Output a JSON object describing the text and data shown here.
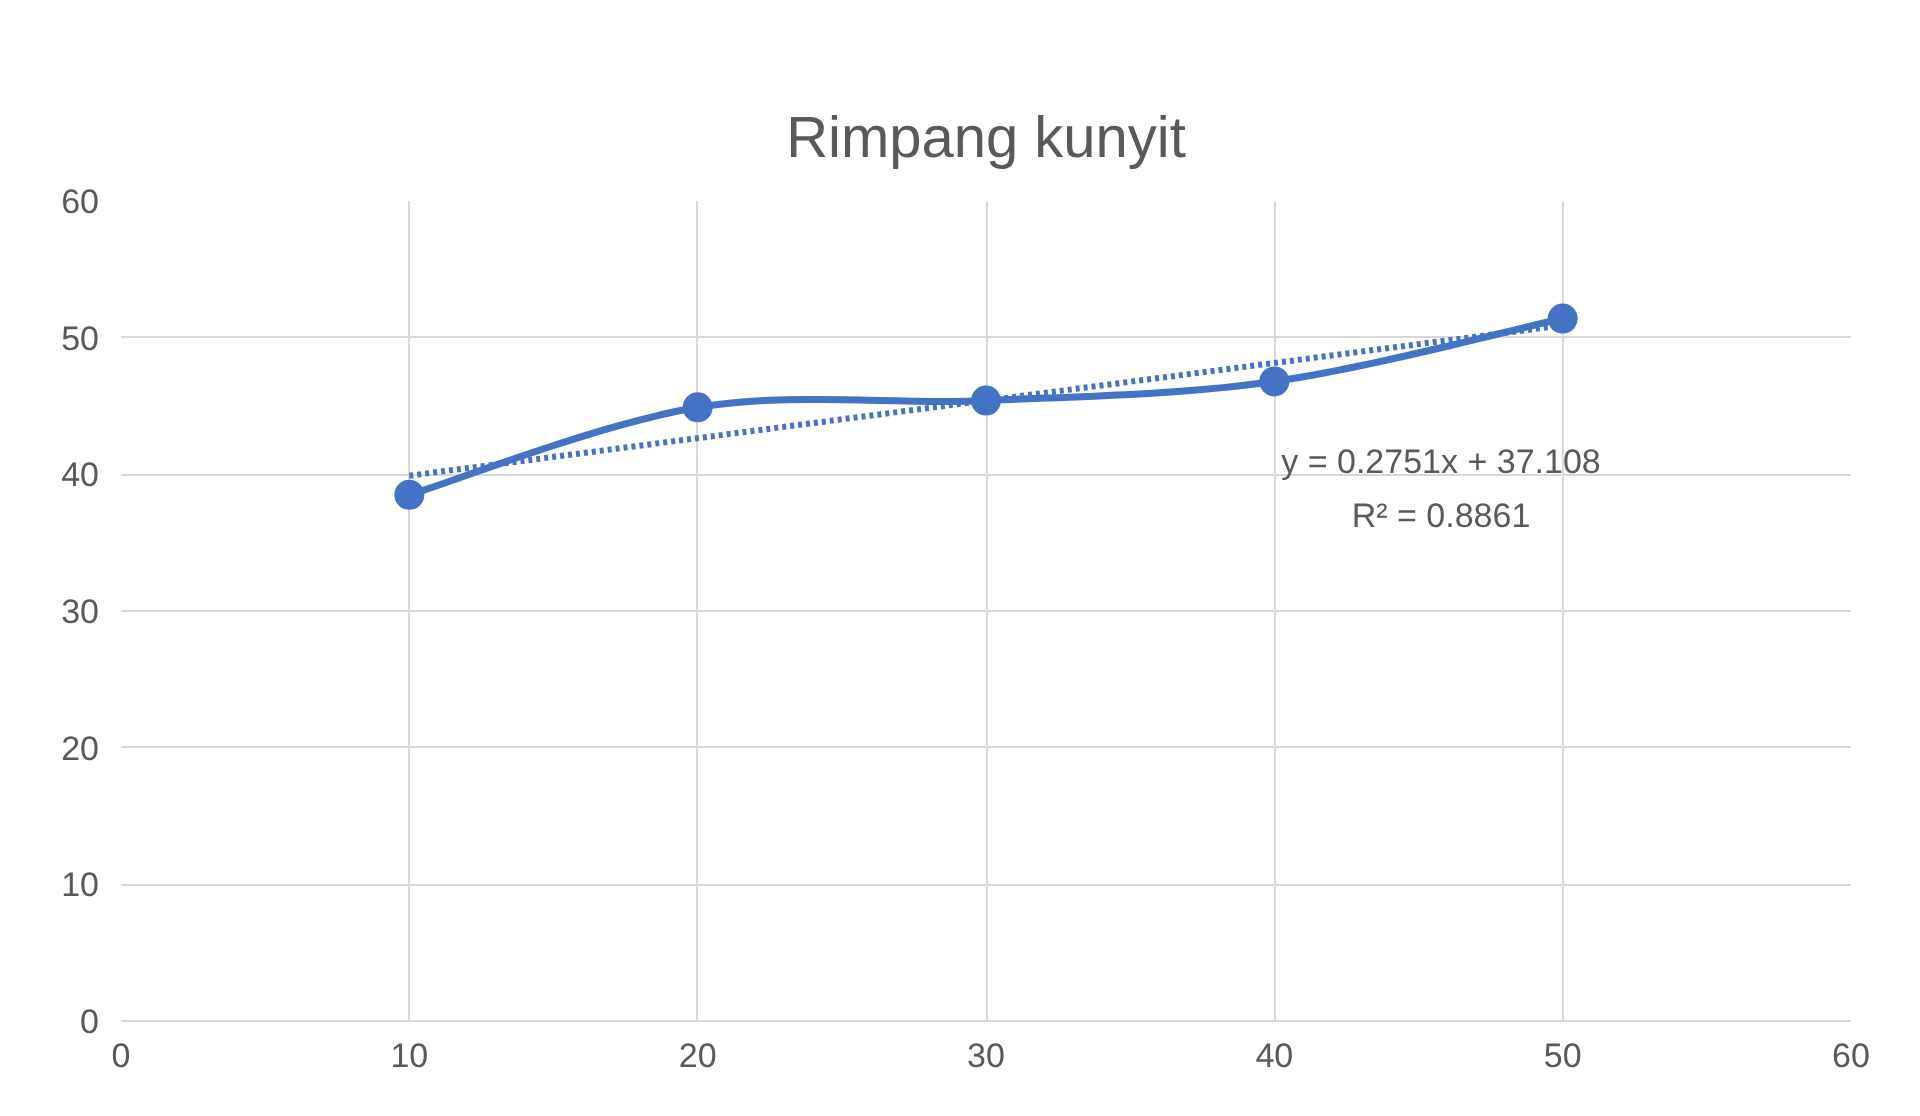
{
  "chart_data": {
    "type": "line",
    "title": "Rimpang kunyit",
    "x": [
      10,
      20,
      30,
      40,
      50
    ],
    "series": [
      {
        "color": "#4472c4",
        "values": [
          38.5,
          44.9,
          45.4,
          46.8,
          51.4
        ],
        "marker": "circle",
        "line_style": "solid"
      },
      {
        "type": "line",
        "x": [
          10,
          50
        ],
        "values": [
          39.9,
          50.9
        ],
        "color": "#4472c4",
        "marker": "none",
        "line_style": "dotted"
      }
    ],
    "xlim": [
      0,
      60
    ],
    "xticks": [
      0,
      10,
      20,
      30,
      40,
      50,
      60
    ],
    "ylim": [
      0,
      60
    ],
    "yticks": [
      0,
      10,
      20,
      30,
      40,
      50,
      60
    ],
    "grid": true,
    "annotations": [
      "y = 0.2751x + 37.108",
      "R² = 0.8861"
    ]
  }
}
